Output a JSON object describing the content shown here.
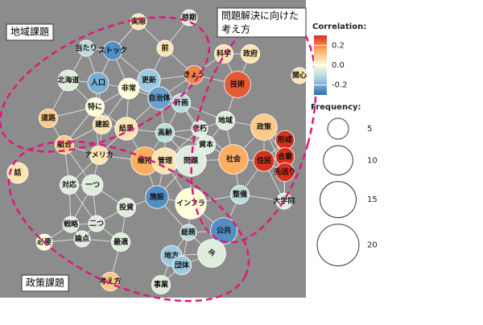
{
  "chart_data": {
    "type": "network",
    "groups": [
      "地域課題",
      "問題解決に向けた",
      "考え方",
      "政策課題"
    ],
    "nodes": [
      {
        "label": "実際",
        "frequency": 3,
        "correlation": 0.05
      },
      {
        "label": "時期",
        "frequency": 3,
        "correlation": -0.05
      },
      {
        "label": "当たり",
        "frequency": 3,
        "correlation": -0.1
      },
      {
        "label": "ストック",
        "frequency": 4,
        "correlation": -0.25
      },
      {
        "label": "前",
        "frequency": 3,
        "correlation": 0.05
      },
      {
        "label": "科学",
        "frequency": 4,
        "correlation": 0.05
      },
      {
        "label": "政府",
        "frequency": 4,
        "correlation": 0.05
      },
      {
        "label": "関心",
        "frequency": 3,
        "correlation": 0.05
      },
      {
        "label": "北海道",
        "frequency": 5,
        "correlation": -0.05
      },
      {
        "label": "人口",
        "frequency": 5,
        "correlation": -0.2
      },
      {
        "label": "非常",
        "frequency": 5,
        "correlation": 0.0
      },
      {
        "label": "更新",
        "frequency": 6,
        "correlation": -0.15
      },
      {
        "label": "自治体",
        "frequency": 6,
        "correlation": -0.22
      },
      {
        "label": "きょう",
        "frequency": 4,
        "correlation": 0.2
      },
      {
        "label": "技術",
        "frequency": 8,
        "correlation": 0.25
      },
      {
        "label": "特に",
        "frequency": 4,
        "correlation": 0.0
      },
      {
        "label": "計画",
        "frequency": 4,
        "correlation": -0.1
      },
      {
        "label": "道路",
        "frequency": 4,
        "correlation": 0.1
      },
      {
        "label": "建設",
        "frequency": 4,
        "correlation": 0.05
      },
      {
        "label": "結果",
        "frequency": 6,
        "correlation": 0.05
      },
      {
        "label": "高齢",
        "frequency": 4,
        "correlation": -0.1
      },
      {
        "label": "老朽",
        "frequency": 3,
        "correlation": -0.05
      },
      {
        "label": "地域",
        "frequency": 4,
        "correlation": -0.05
      },
      {
        "label": "政策",
        "frequency": 8,
        "correlation": 0.1
      },
      {
        "label": "形成",
        "frequency": 4,
        "correlation": 0.35
      },
      {
        "label": "組合",
        "frequency": 4,
        "correlation": 0.1
      },
      {
        "label": "アメリカ",
        "frequency": 4,
        "correlation": 0.05
      },
      {
        "label": "資本",
        "frequency": 4,
        "correlation": -0.05
      },
      {
        "label": "合意",
        "frequency": 4,
        "correlation": 0.35
      },
      {
        "label": "維持",
        "frequency": 9,
        "correlation": 0.15
      },
      {
        "label": "管理",
        "frequency": 8,
        "correlation": 0.05
      },
      {
        "label": "問題",
        "frequency": 11,
        "correlation": -0.05
      },
      {
        "label": "社会",
        "frequency": 10,
        "correlation": 0.15
      },
      {
        "label": "住民",
        "frequency": 5,
        "correlation": 0.3
      },
      {
        "label": "先送り",
        "frequency": 4,
        "correlation": 0.35
      },
      {
        "label": "話",
        "frequency": 5,
        "correlation": 0.05
      },
      {
        "label": "対応",
        "frequency": 4,
        "correlation": -0.05
      },
      {
        "label": "一つ",
        "frequency": 5,
        "correlation": -0.05
      },
      {
        "label": "施設",
        "frequency": 6,
        "correlation": -0.25
      },
      {
        "label": "インフラ",
        "frequency": 11,
        "correlation": 0.0
      },
      {
        "label": "整備",
        "frequency": 4,
        "correlation": -0.1
      },
      {
        "label": "大学院",
        "frequency": 3,
        "correlation": -0.05
      },
      {
        "label": "投資",
        "frequency": 4,
        "correlation": -0.05
      },
      {
        "label": "戦略",
        "frequency": 3,
        "correlation": -0.05
      },
      {
        "label": "二つ",
        "frequency": 3,
        "correlation": -0.05
      },
      {
        "label": "公共",
        "frequency": 8,
        "correlation": -0.25
      },
      {
        "label": "論点",
        "frequency": 3,
        "correlation": -0.05
      },
      {
        "label": "総務",
        "frequency": 3,
        "correlation": -0.1
      },
      {
        "label": "必要",
        "frequency": 3,
        "correlation": 0.0
      },
      {
        "label": "最適",
        "frequency": 4,
        "correlation": -0.05
      },
      {
        "label": "地方",
        "frequency": 5,
        "correlation": -0.15
      },
      {
        "label": "今",
        "frequency": 9,
        "correlation": -0.05
      },
      {
        "label": "団体",
        "frequency": 4,
        "correlation": -0.15
      },
      {
        "label": "考え方",
        "frequency": 4,
        "correlation": 0.1
      },
      {
        "label": "事業",
        "frequency": 4,
        "correlation": -0.05
      }
    ],
    "color_legend": {
      "title": "Correlation:",
      "clim": [
        -0.3,
        0.3
      ],
      "ticks": [
        0.2,
        {
          "value": 0,
          "label": "0.0"
        },
        -0.2
      ]
    },
    "size_legend": {
      "title": "Frequency:",
      "values": [
        5,
        10,
        15,
        20
      ]
    }
  }
}
